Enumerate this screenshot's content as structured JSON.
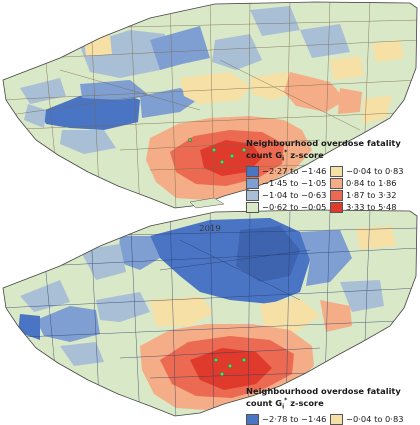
{
  "panels": [
    {
      "year": "",
      "legend": {
        "title_line1": "Neighbourhood overdose fatality",
        "title_line2_prefix": "count G",
        "title_sub": "i",
        "title_sup": "*",
        "title_line2_suffix": " z-score",
        "classes": [
          {
            "label": "−2·27 to −1·46",
            "color": "#4a74c4"
          },
          {
            "label": "−0·04 to 0·83",
            "color": "#f6e0a6"
          },
          {
            "label": "−1·45 to −1·05",
            "color": "#7f9fd2"
          },
          {
            "label": "0·84 to 1·86",
            "color": "#f4ad86"
          },
          {
            "label": "−1·04 to −0·63",
            "color": "#a8bfd6"
          },
          {
            "label": "1·87 to 3·32",
            "color": "#ec6a52"
          },
          {
            "label": "−0·62 to −0·05",
            "color": "#d9e8c6"
          },
          {
            "label": "3·33 to 5·48",
            "color": "#df3a2b"
          }
        ]
      }
    },
    {
      "year": "2019",
      "legend": {
        "title_line1": "Neighbourhood overdose fatality",
        "title_line2_prefix": "count G",
        "title_sub": "i",
        "title_sup": "*",
        "title_line2_suffix": " z-score",
        "classes": [
          {
            "label": "−2·78 to −1·46",
            "color": "#4a74c4"
          },
          {
            "label": "−0·04 to 0·83",
            "color": "#f6e0a6"
          }
        ]
      }
    }
  ]
}
